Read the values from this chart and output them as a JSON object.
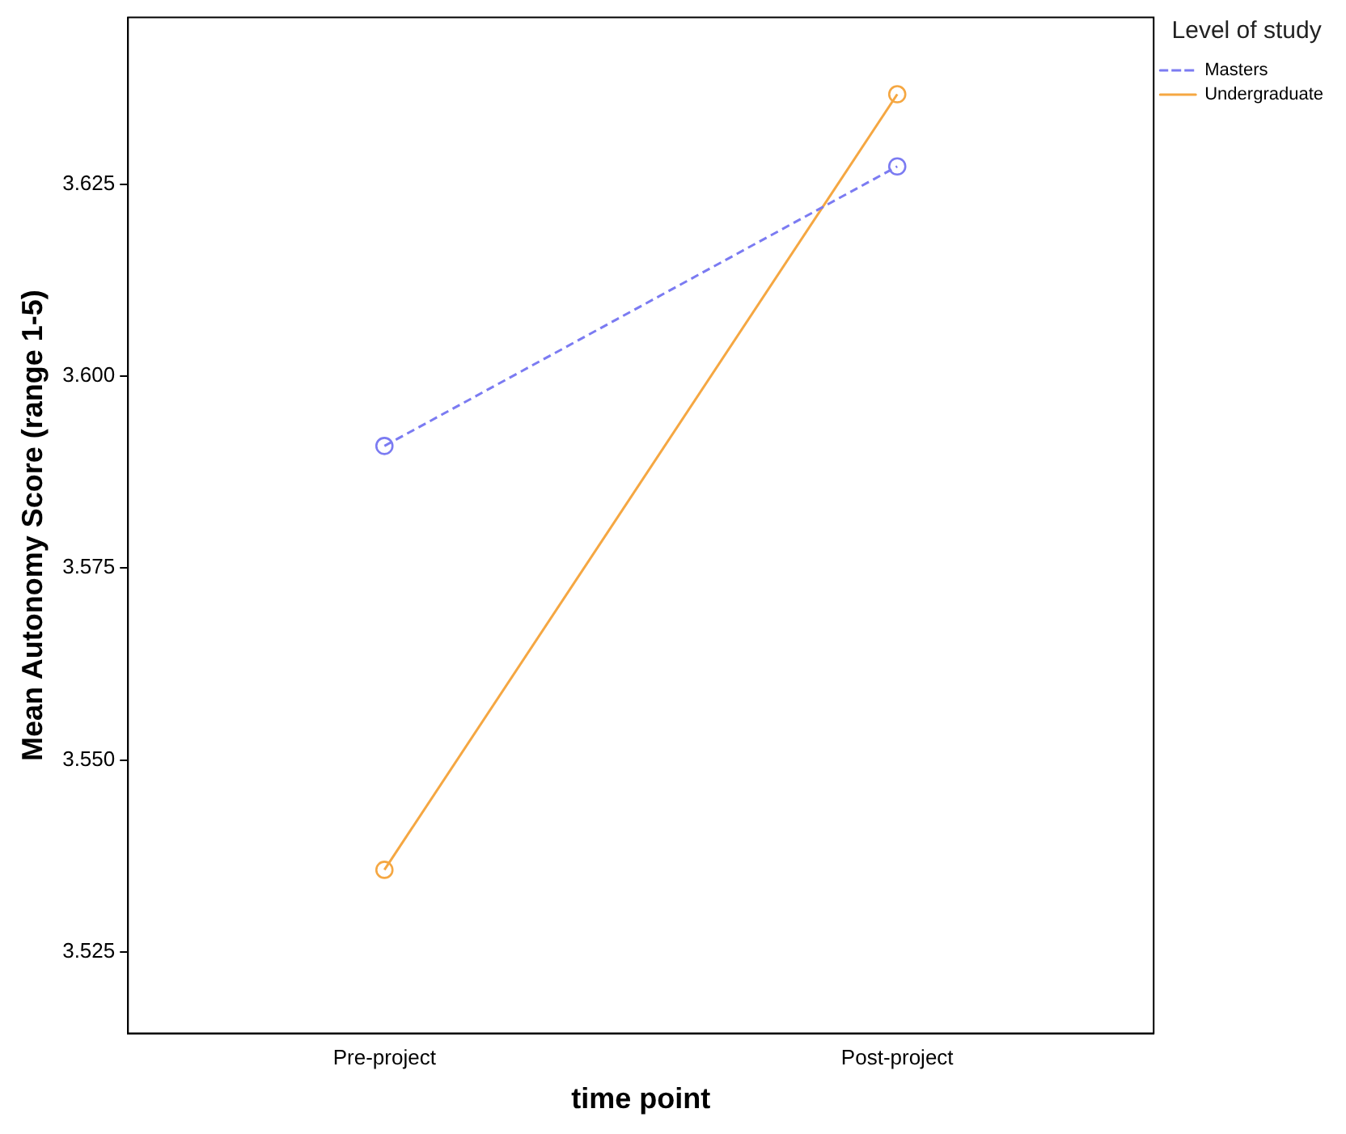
{
  "chart_data": {
    "type": "line",
    "xlabel": "time point",
    "ylabel": "Mean Autonomy Score (range 1-5)",
    "legend_title": "Level of study",
    "legend": "right",
    "grid": false,
    "marker": "circle",
    "categories": [
      "Pre-project",
      "Post-project"
    ],
    "ylim": [
      3.5144,
      3.6467
    ],
    "yticks": [
      {
        "value": 3.525,
        "label": "3.525"
      },
      {
        "value": 3.55,
        "label": "3.550"
      },
      {
        "value": 3.575,
        "label": "3.575"
      },
      {
        "value": 3.6,
        "label": "3.600"
      },
      {
        "value": 3.625,
        "label": "3.625"
      }
    ],
    "series": [
      {
        "name": "Masters",
        "color": "#7b7bf2",
        "line_style": "dashed",
        "values": [
          3.5909,
          3.6273
        ]
      },
      {
        "name": "Undergraduate",
        "color": "#f5a742",
        "line_style": "solid",
        "values": [
          3.5357,
          3.6367
        ]
      }
    ]
  }
}
